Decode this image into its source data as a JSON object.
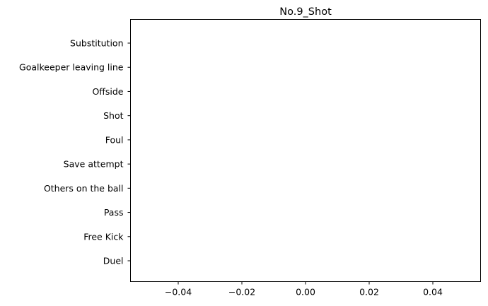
{
  "chart_data": {
    "type": "bar",
    "orientation": "horizontal",
    "title": "No.9_Shot",
    "xlabel": "",
    "ylabel": "",
    "categories": [
      "Substitution",
      "Goalkeeper leaving line",
      "Offside",
      "Shot",
      "Foul",
      "Save attempt",
      "Others on the ball",
      "Pass",
      "Free Kick",
      "Duel"
    ],
    "values": [
      0,
      0,
      0,
      0,
      0,
      0,
      0,
      0,
      0,
      0
    ],
    "xlim": [
      -0.055,
      0.055
    ],
    "xticks": [
      -0.04,
      -0.02,
      0.0,
      0.02,
      0.04
    ],
    "xtick_labels": [
      "−0.04",
      "−0.02",
      "0.00",
      "0.02",
      "0.04"
    ],
    "grid": false,
    "legend": "none"
  }
}
